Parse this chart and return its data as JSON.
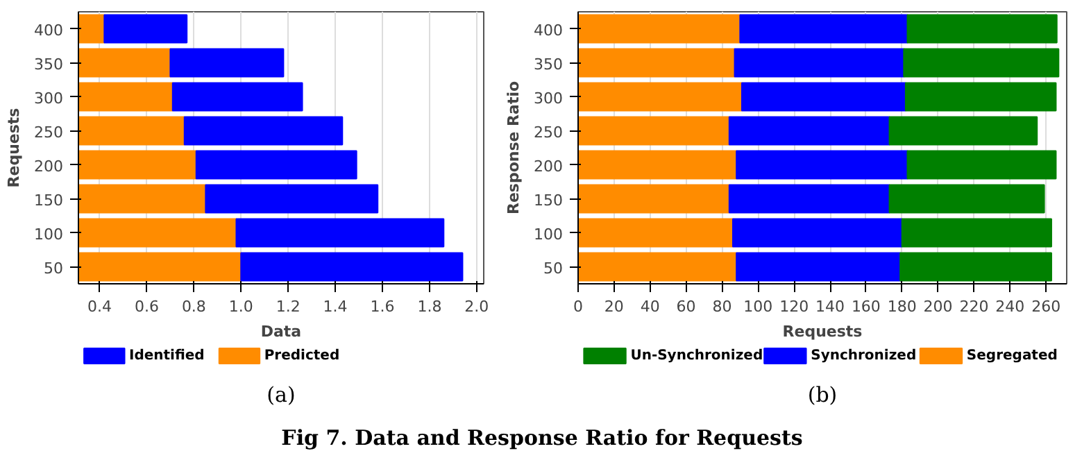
{
  "chart_data": [
    {
      "type": "bar",
      "orientation": "horizontal",
      "stacked": true,
      "xlabel": "Data",
      "ylabel": "Requests",
      "categories": [
        "400",
        "350",
        "300",
        "250",
        "200",
        "150",
        "100",
        "50"
      ],
      "series": [
        {
          "name": "Predicted",
          "color": "#ff8c00",
          "values": [
            0.42,
            0.7,
            0.71,
            0.76,
            0.81,
            0.85,
            0.98,
            1.0
          ]
        },
        {
          "name": "Identified",
          "color": "#0000ff",
          "values": [
            0.35,
            0.48,
            0.55,
            0.67,
            0.68,
            0.73,
            0.88,
            0.94
          ]
        }
      ],
      "xlim": [
        0.31,
        2.03
      ],
      "xticks": [
        0.4,
        0.6,
        0.8,
        {
          "value": 1.0,
          "label": "1.0"
        },
        1.2,
        1.4,
        1.6,
        1.8,
        {
          "value": 2.0,
          "label": "2.0"
        }
      ],
      "grid": "x",
      "legend": "bottom",
      "annotations": [
        "(a)"
      ]
    },
    {
      "type": "bar",
      "orientation": "horizontal",
      "stacked": true,
      "xlabel": "Requests",
      "ylabel": "Response Ratio",
      "categories": [
        "400",
        "350",
        "300",
        "250",
        "200",
        "150",
        "100",
        "50"
      ],
      "series": [
        {
          "name": "Segregated",
          "color": "#ff8c00",
          "values": [
            90,
            87,
            91,
            84,
            88,
            84,
            86,
            88
          ]
        },
        {
          "name": "Synchronized",
          "color": "#0000ff",
          "values": [
            93,
            94,
            91,
            89,
            95,
            89,
            94,
            91
          ]
        },
        {
          "name": "Un-Synchronized",
          "color": "#008000",
          "values": [
            83,
            86,
            83.5,
            82,
            82.5,
            86,
            83,
            84
          ]
        }
      ],
      "xlim": [
        0,
        271.5
      ],
      "xticks": [
        0,
        20,
        40,
        60,
        80,
        100,
        120,
        140,
        160,
        180,
        200,
        220,
        240,
        260
      ],
      "grid": "x",
      "legend": "bottom",
      "annotations": [
        "(b)",
        "Fig 7. Data and Response Ratio for Requests"
      ]
    }
  ]
}
